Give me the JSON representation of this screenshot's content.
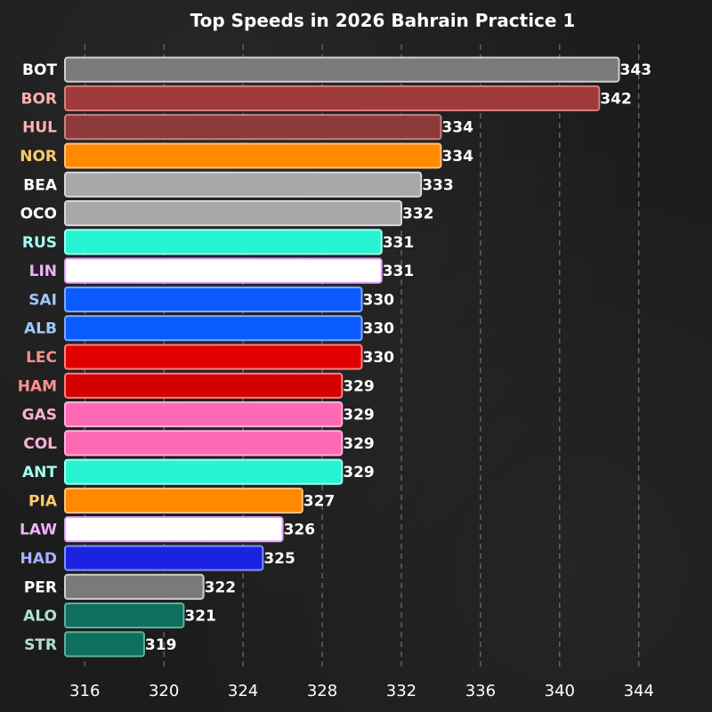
{
  "chart_data": {
    "type": "bar",
    "orientation": "horizontal",
    "title": "Top Speeds in 2026 Bahrain Practice 1",
    "xlabel": "",
    "ylabel": "",
    "xlim": [
      315,
      345
    ],
    "xticks": [
      316,
      320,
      324,
      328,
      332,
      336,
      340,
      344
    ],
    "grid": true,
    "categories": [
      "BOT",
      "BOR",
      "HUL",
      "NOR",
      "BEA",
      "OCO",
      "RUS",
      "LIN",
      "SAI",
      "ALB",
      "LEC",
      "HAM",
      "GAS",
      "COL",
      "ANT",
      "PIA",
      "LAW",
      "HAD",
      "PER",
      "ALO",
      "STR"
    ],
    "values": [
      343,
      342,
      334,
      334,
      333,
      332,
      331,
      331,
      330,
      330,
      330,
      329,
      329,
      329,
      329,
      327,
      326,
      325,
      322,
      321,
      319
    ],
    "bar_colors": [
      "#7a7a7a",
      "#9e3a3a",
      "#8f3a3a",
      "#ff8a00",
      "#a8a8a8",
      "#a8a8a8",
      "#27f4d2",
      "#ffffff",
      "#0a5cff",
      "#0a5cff",
      "#e00000",
      "#d40000",
      "#ff69b4",
      "#ff69b4",
      "#27f4d2",
      "#ff8a00",
      "#ffffff",
      "#1a24e0",
      "#7a7a7a",
      "#0f6f5f",
      "#0f6f5f"
    ],
    "edge_colors": [
      "#cfcfcf",
      "#d08080",
      "#c88080",
      "#ffc080",
      "#d8d8d8",
      "#d8d8d8",
      "#a0fff0",
      "#e0a0ff",
      "#80a8ff",
      "#80a8ff",
      "#ff8080",
      "#ff8080",
      "#ffb0d8",
      "#ffb0d8",
      "#a0fff0",
      "#ffc080",
      "#e0a0ff",
      "#8090ff",
      "#cfcfcf",
      "#5fb0a0",
      "#5fb0a0"
    ],
    "label_colors": [
      "#ffffff",
      "#ffb0b0",
      "#ffb0b0",
      "#ffc970",
      "#ffffff",
      "#ffffff",
      "#a0fff0",
      "#f0b0ff",
      "#a0c8ff",
      "#a0c8ff",
      "#ff9090",
      "#ff9090",
      "#ffb0d8",
      "#ffb0d8",
      "#a0fff0",
      "#ffc970",
      "#f0b0ff",
      "#a8b0ff",
      "#ffffff",
      "#b0e0d0",
      "#b0e0d0"
    ]
  }
}
